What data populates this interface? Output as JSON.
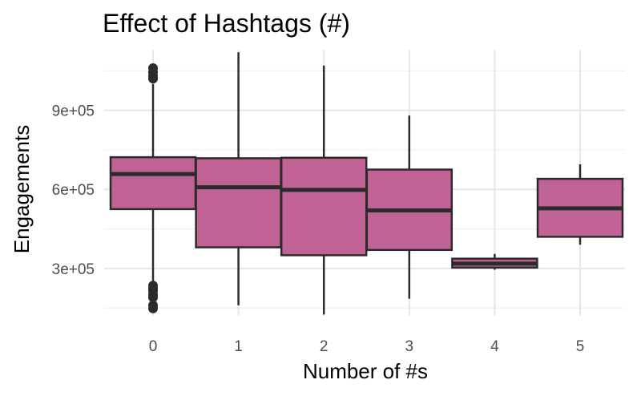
{
  "chart_data": {
    "type": "boxplot",
    "title": "Effect of Hashtags (#)",
    "xlabel": "Number of #s",
    "ylabel": "Engagements",
    "categories": [
      "0",
      "1",
      "2",
      "3",
      "4",
      "5"
    ],
    "ylim": [
      120000,
      1130000
    ],
    "yticks": [
      300000,
      600000,
      900000
    ],
    "ytick_labels": [
      "3e+05",
      "6e+05",
      "9e+05"
    ],
    "grid": true,
    "legend": "none",
    "fill_color": "#c06394",
    "line_color": "#2b2b2b",
    "boxes": [
      {
        "category": "0",
        "whisker_low": 250000,
        "q1": 525000,
        "median": 658000,
        "q3": 722000,
        "whisker_high": 1000000,
        "outliers": [
          1060000,
          1045000,
          1030000,
          1020000,
          235000,
          225000,
          215000,
          200000,
          190000,
          160000,
          148000
        ]
      },
      {
        "category": "1",
        "whisker_low": 160000,
        "q1": 380000,
        "median": 608000,
        "q3": 718000,
        "whisker_high": 1120000,
        "outliers": []
      },
      {
        "category": "2",
        "whisker_low": 125000,
        "q1": 350000,
        "median": 598000,
        "q3": 720000,
        "whisker_high": 1070000,
        "outliers": []
      },
      {
        "category": "3",
        "whisker_low": 185000,
        "q1": 370000,
        "median": 520000,
        "q3": 675000,
        "whisker_high": 880000,
        "outliers": []
      },
      {
        "category": "4",
        "whisker_low": 295000,
        "q1": 303000,
        "median": 318000,
        "q3": 337000,
        "whisker_high": 355000,
        "outliers": []
      },
      {
        "category": "5",
        "whisker_low": 390000,
        "q1": 420000,
        "median": 528000,
        "q3": 640000,
        "whisker_high": 695000,
        "outliers": []
      }
    ]
  }
}
